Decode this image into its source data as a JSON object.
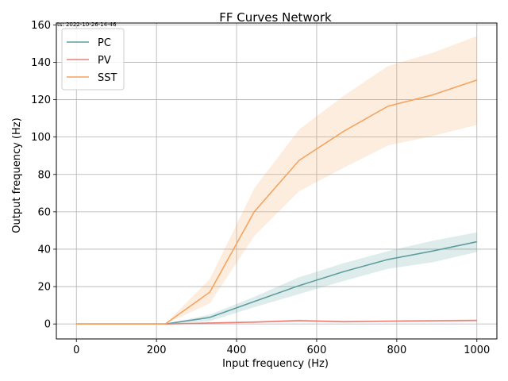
{
  "timestamp": "ts: 2022-10-26-14-46",
  "chart_data": {
    "type": "line",
    "title": "FF Curves Network",
    "xlabel": "Input frequency (Hz)",
    "ylabel": "Output frequency (Hz)",
    "xlim": [
      -50,
      1050
    ],
    "ylim": [
      -8,
      161
    ],
    "xticks": [
      0,
      200,
      400,
      600,
      800,
      1000
    ],
    "yticks": [
      0,
      20,
      40,
      60,
      80,
      100,
      120,
      140,
      160
    ],
    "grid": true,
    "legend_position": "top-left",
    "x": [
      0,
      111,
      222,
      333,
      444,
      556,
      667,
      778,
      889,
      1000
    ],
    "series": [
      {
        "name": "PC",
        "color": "#5f9ea0",
        "values": [
          0,
          0,
          0,
          3.5,
          12,
          20.5,
          28,
          34.5,
          39,
          44
        ],
        "lower": [
          0,
          0,
          0,
          1.5,
          9,
          16,
          23,
          29.5,
          33,
          38.5
        ],
        "upper": [
          0,
          0,
          0,
          5,
          14.5,
          25,
          32.5,
          39,
          44.5,
          49
        ]
      },
      {
        "name": "PV",
        "color": "#e9827a",
        "values": [
          0,
          0,
          0,
          0.5,
          1,
          1.8,
          1.2,
          1.5,
          1.7,
          1.9
        ],
        "lower": [
          0,
          0,
          0,
          0.2,
          0.5,
          1.2,
          0.7,
          1,
          1.2,
          1.3
        ],
        "upper": [
          0,
          0,
          0,
          0.8,
          1.5,
          2.4,
          1.7,
          2,
          2.2,
          2.5
        ]
      },
      {
        "name": "SST",
        "color": "#f4a460",
        "values": [
          0,
          0,
          0,
          17,
          60,
          87.5,
          103,
          116.5,
          122.5,
          130.5
        ],
        "lower": [
          0,
          0,
          0,
          11,
          47,
          71,
          83.5,
          95.5,
          100.5,
          106.5
        ],
        "upper": [
          0,
          0,
          0,
          24,
          72.5,
          104,
          122,
          138,
          145,
          154
        ]
      }
    ]
  }
}
